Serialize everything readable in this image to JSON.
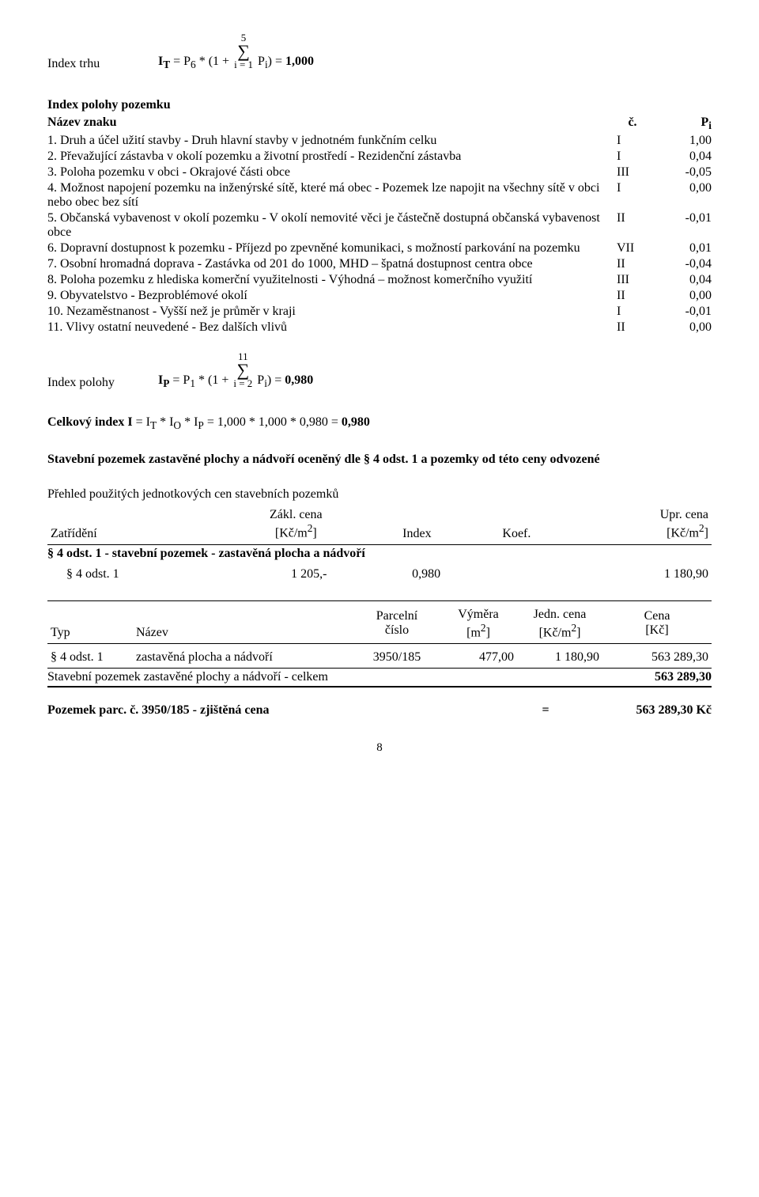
{
  "formula1": {
    "lead_label": "Index trhu",
    "lhs": "I",
    "lhs_sub": "T",
    "eq1": " = P",
    "p6_sub": "6",
    "star_open": " * (1 + ",
    "sigma_top": "5",
    "sigma_sym": "∑",
    "sigma_bot": "i = 1",
    "after_sigma": " P",
    "pi_sub": "i",
    "close": ") = ",
    "result": "1,000"
  },
  "section1": {
    "heading": "Index polohy pozemku",
    "hdr_name": "Název znaku",
    "hdr_c": "č.",
    "hdr_pi_pre": "P",
    "hdr_pi_sub": "i",
    "rows": [
      {
        "text": "1. Druh a účel užití stavby - Druh hlavní stavby v jednotném funkčním celku",
        "code": "I",
        "val": "1,00"
      },
      {
        "text": "2. Převažující zástavba v okolí pozemku a životní prostředí - Rezidenční zástavba",
        "code": "I",
        "val": "0,04"
      },
      {
        "text": "3. Poloha pozemku v obci - Okrajové části obce",
        "code": "III",
        "val": "-0,05"
      },
      {
        "text": "4. Možnost napojení pozemku na inženýrské sítě, které má obec - Pozemek lze napojit na všechny sítě v obci nebo obec bez sítí",
        "code": "I",
        "val": "0,00"
      },
      {
        "text": "5. Občanská vybavenost v okolí pozemku - V okolí nemovité věci je částečně dostupná občanská vybavenost obce",
        "code": "II",
        "val": "-0,01"
      },
      {
        "text": "6. Dopravní dostupnost k pozemku - Příjezd po zpevněné komunikaci, s možností parkování na pozemku",
        "code": "VII",
        "val": "0,01"
      },
      {
        "text": "7. Osobní hromadná doprava - Zastávka od 201 do 1000, MHD – špatná dostupnost centra obce",
        "code": "II",
        "val": "-0,04"
      },
      {
        "text": "8. Poloha pozemku z hlediska komerční využitelnosti - Výhodná – možnost komerčního využití",
        "code": "III",
        "val": "0,04"
      },
      {
        "text": "9. Obyvatelstvo - Bezproblémové okolí",
        "code": "II",
        "val": "0,00"
      },
      {
        "text": "10. Nezaměstnanost - Vyšší než je průměr v kraji",
        "code": "I",
        "val": "-0,01"
      },
      {
        "text": "11. Vlivy ostatní neuvedené - Bez dalších vlivů",
        "code": "II",
        "val": "0,00"
      }
    ]
  },
  "formula2": {
    "lead_label": "Index polohy",
    "lhs": "I",
    "lhs_sub": "P",
    "eq1": " = P",
    "p1_sub": "1",
    "star_open": " * (1 + ",
    "sigma_top": "11",
    "sigma_sym": "∑",
    "sigma_bot": "i = 2",
    "after_sigma": " P",
    "pi_sub": "i",
    "close": ") = ",
    "result": "0,980"
  },
  "totalIndex": {
    "pre": "Celkový index I",
    "mid": " = I",
    "t_sub": "T",
    "star1": " * I",
    "o_sub": "O",
    "star2": " * I",
    "p_sub": "P",
    "rest": " = 1,000 * 1,000 * 0,980 = ",
    "result": "0,980"
  },
  "section2": {
    "heading": "Stavební pozemek zastavěné plochy a nádvoří oceněný dle § 4 odst. 1 a pozemky od této ceny odvozené",
    "sub": "Přehled použitých jednotkových cen stavebních pozemků"
  },
  "table1": {
    "h1": "Zatřídění",
    "h2a": "Zákl. cena",
    "h2b_pre": "[Kč/m",
    "h2b_sup": "2",
    "h2b_post": "]",
    "h3": "Index",
    "h4": "Koef.",
    "h5a": "Upr. cena",
    "h5b_pre": "[Kč/m",
    "h5b_sup": "2",
    "h5b_post": "]",
    "group": "§ 4 odst. 1 - stavební pozemek - zastavěná plocha a nádvoří",
    "r1_c1": "§ 4 odst. 1",
    "r1_c2": "1 205,-",
    "r1_c3": "0,980",
    "r1_c4": "",
    "r1_c5": "1 180,90"
  },
  "table2": {
    "h1": "Typ",
    "h2": "Název",
    "h3a": "Parcelní",
    "h3b": "číslo",
    "h4a": "Výměra",
    "h4b_pre": "[m",
    "h4b_sup": "2",
    "h4b_post": "]",
    "h5a": "Jedn. cena",
    "h5b_pre": "[Kč/m",
    "h5b_sup": "2",
    "h5b_post": "]",
    "h6a": "Cena",
    "h6b": "[Kč]",
    "r1_c1": "§ 4 odst. 1",
    "r1_c2": "zastavěná plocha a nádvoří",
    "r1_c3": "3950/185",
    "r1_c4": "477,00",
    "r1_c5": "1 180,90",
    "r1_c6": "563 289,30",
    "total_label": "Stavební pozemek zastavěné plochy a nádvoří - celkem",
    "total_val": "563 289,30"
  },
  "final": {
    "label": "Pozemek parc. č. 3950/185 - zjištěná cena",
    "eq": "=",
    "val": "563 289,30 Kč"
  },
  "page": "8"
}
